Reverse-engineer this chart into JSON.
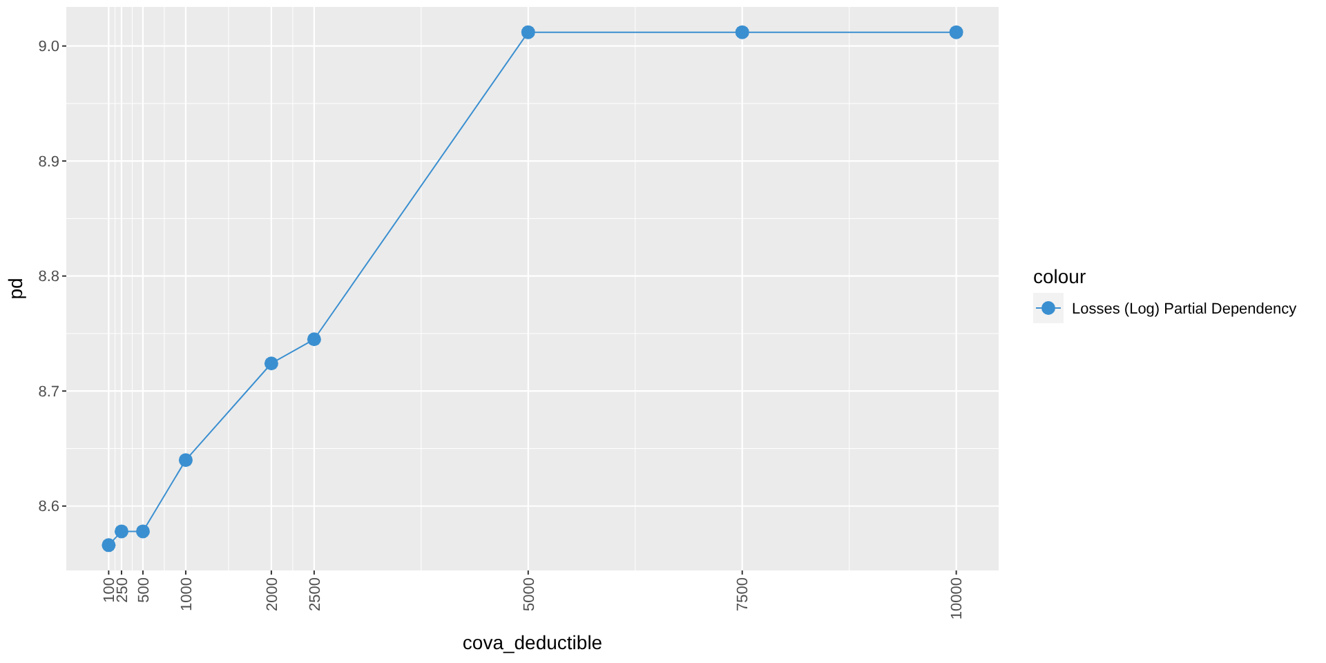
{
  "chart_data": {
    "type": "line",
    "xlabel": "cova_deductible",
    "ylabel": "pd",
    "legend_title": "colour",
    "legend": "right",
    "grid": true,
    "marker": "circle",
    "line_style": "solid",
    "x": [
      100,
      250,
      500,
      1000,
      2000,
      2500,
      5000,
      7500,
      10000
    ],
    "series": [
      {
        "name": "Losses (Log) Partial Dependency",
        "color": "#3a8fd0",
        "values": [
          8.566,
          8.578,
          8.578,
          8.64,
          8.724,
          8.745,
          9.012,
          9.012,
          9.012
        ]
      }
    ],
    "xlim": [
      -395,
      10495
    ],
    "xticks": [
      100,
      250,
      500,
      1000,
      2000,
      2500,
      5000,
      7500,
      10000
    ],
    "ylim": [
      8.544,
      9.034
    ],
    "yticks": [
      8.6,
      8.7,
      8.8,
      8.9,
      {
        "value": 9,
        "label": "9.0"
      }
    ]
  }
}
